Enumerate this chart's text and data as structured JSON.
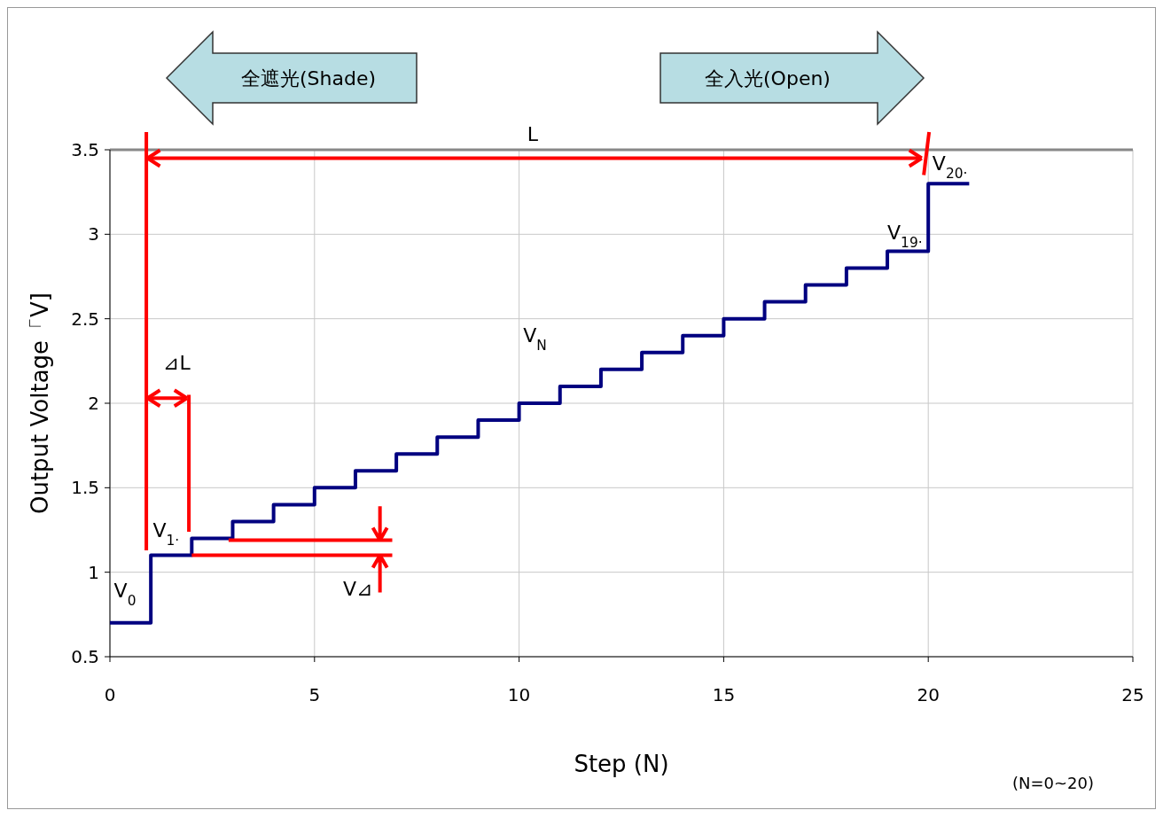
{
  "chart_data": {
    "type": "step",
    "xlabel": "Step (N)",
    "ylabel": "Output Voltage「V]",
    "x": [
      0,
      1,
      2,
      3,
      4,
      5,
      6,
      7,
      8,
      9,
      10,
      11,
      12,
      13,
      14,
      15,
      16,
      17,
      18,
      19,
      20,
      21
    ],
    "series": [
      {
        "color": "#000080",
        "values": [
          0.7,
          1.1,
          1.2,
          1.3,
          1.4,
          1.5,
          1.6,
          1.7,
          1.8,
          1.9,
          2.0,
          2.1,
          2.2,
          2.3,
          2.4,
          2.5,
          2.6,
          2.7,
          2.8,
          2.9,
          3.3,
          3.3
        ]
      },
      {
        "type": "line",
        "color": "#ff0000",
        "x": [
          0.89,
          0.89
        ],
        "values": [
          3.5,
          1.13
        ]
      },
      {
        "type": "line",
        "color": "#ff0000",
        "x": [
          0.95,
          19.8
        ],
        "values": [
          3.45,
          3.45
        ]
      },
      {
        "type": "line",
        "color": "#ff0000",
        "x": [
          0.95,
          1.85
        ],
        "values": [
          2.03,
          2.03
        ]
      },
      {
        "type": "line",
        "color": "#ff0000",
        "x": [
          1.93,
          1.93
        ],
        "values": [
          2.05,
          1.24
        ]
      },
      {
        "type": "line",
        "color": "#ff0000",
        "x": [
          2.0,
          6.9
        ],
        "values": [
          1.1,
          1.1
        ]
      },
      {
        "type": "line",
        "color": "#ff0000",
        "x": [
          2.9,
          6.9
        ],
        "values": [
          1.19,
          1.19
        ]
      }
    ],
    "xlim": [
      0,
      25
    ],
    "xticks": [
      0,
      5,
      10,
      15,
      20,
      25
    ],
    "ylim": [
      0.5,
      3.5
    ],
    "yticks": [
      0.5,
      1,
      1.5,
      2,
      2.5,
      3,
      3.5
    ],
    "grid": true,
    "marker": "none",
    "line_style": "solid",
    "annotations": [
      "全遮光(Shade)",
      "全入光(Open)",
      "(N=0~20)",
      "V$_{0}$",
      "V$_{1·}$",
      "V$_{19·}$",
      "V$_{20·}$",
      "V$_{N}$",
      "L",
      "⊿L",
      "V⊿"
    ]
  }
}
